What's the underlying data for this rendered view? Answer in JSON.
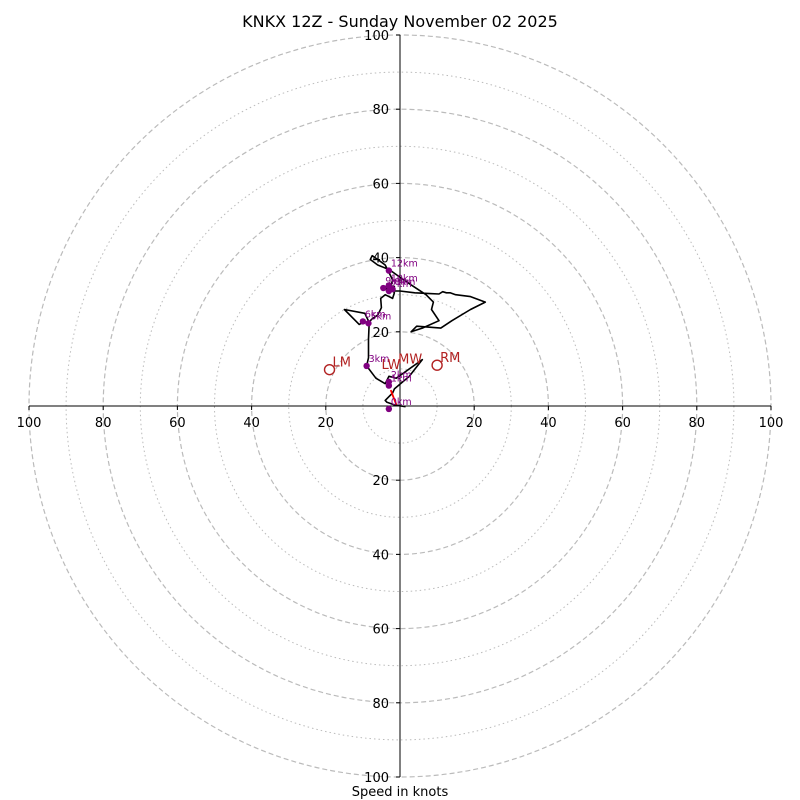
{
  "chart_data": {
    "type": "hodograph",
    "title": "KNKX 12Z - Sunday November 02 2025",
    "xlabel": "Speed in knots",
    "units": "knots",
    "range": [
      -100,
      100
    ],
    "rings_dashed": [
      20,
      40,
      60,
      80,
      100
    ],
    "rings_dotted": [
      10,
      30,
      50,
      70,
      90
    ],
    "tick_labels": {
      "x_left": [
        "100",
        "80",
        "60",
        "40",
        "20"
      ],
      "x_right": [
        "20",
        "40",
        "60",
        "80",
        "100"
      ],
      "y_up": [
        "20",
        "40",
        "60",
        "80",
        "100"
      ],
      "y_down": [
        "20",
        "40",
        "60",
        "80",
        "100"
      ]
    },
    "trace": [
      [
        1.5,
        -0.2
      ],
      [
        -1.5,
        0.3
      ],
      [
        -3.5,
        1.0
      ],
      [
        -4.0,
        1.5
      ],
      [
        -3.0,
        2.5
      ],
      [
        -2.0,
        3.5
      ],
      [
        -1.5,
        4.6
      ],
      [
        2.5,
        8.0
      ],
      [
        6.0,
        12.5
      ],
      [
        -1.0,
        7.5
      ],
      [
        -3.0,
        8.0
      ],
      [
        -4.0,
        6.0
      ],
      [
        -6.5,
        7.5
      ],
      [
        -9.0,
        10.8
      ],
      [
        -8.5,
        13.0
      ],
      [
        -8.5,
        18.0
      ],
      [
        -8.3,
        22.5
      ],
      [
        -9.5,
        25.0
      ],
      [
        -15.0,
        26.0
      ],
      [
        -11.0,
        22.0
      ],
      [
        -10.0,
        22.5
      ],
      [
        -8.5,
        22.5
      ],
      [
        -7.5,
        23.5
      ],
      [
        -6.0,
        24.5
      ],
      [
        -5.0,
        26.5
      ],
      [
        -5.2,
        29.0
      ],
      [
        -4.0,
        30.0
      ],
      [
        -2.0,
        29.0
      ],
      [
        -1.5,
        30.5
      ],
      [
        -2.5,
        32.0
      ],
      [
        -2.0,
        34.0
      ],
      [
        -3.0,
        36.0
      ],
      [
        -4.0,
        38.0
      ],
      [
        -6.0,
        39.5
      ],
      [
        -7.5,
        40.5
      ],
      [
        -8.0,
        39.5
      ],
      [
        -6.0,
        38.0
      ],
      [
        -3.5,
        37.0
      ],
      [
        -2.5,
        36.5
      ],
      [
        1.0,
        34.0
      ],
      [
        4.0,
        32.0
      ],
      [
        7.0,
        30.0
      ],
      [
        9.0,
        28.0
      ],
      [
        8.5,
        26.0
      ],
      [
        10.5,
        23.0
      ],
      [
        6.0,
        21.0
      ],
      [
        3.0,
        20.0
      ],
      [
        4.5,
        21.5
      ],
      [
        11.0,
        21.0
      ],
      [
        14.0,
        23.0
      ],
      [
        19.0,
        26.0
      ],
      [
        23.0,
        28.0
      ],
      [
        19.0,
        29.5
      ],
      [
        15.0,
        30.0
      ],
      [
        13.5,
        30.5
      ],
      [
        12.5,
        30.5
      ],
      [
        11.5,
        30.8
      ],
      [
        10.5,
        30.2
      ],
      [
        8.0,
        30.3
      ],
      [
        4.0,
        30.5
      ],
      [
        0.0,
        31.0
      ],
      [
        -2.0,
        31.0
      ],
      [
        -4.5,
        31.5
      ],
      [
        -3.5,
        32.5
      ],
      [
        -1.5,
        32.2
      ],
      [
        -3.0,
        31.7
      ],
      [
        -5.0,
        31.8
      ]
    ],
    "height_markers": [
      {
        "label": "12km",
        "u": -3.0,
        "v": 36.5
      },
      {
        "label": "10km",
        "u": -3.0,
        "v": 32.5
      },
      {
        "label": "9km",
        "u": -4.5,
        "v": 31.8
      },
      {
        "label": "8km",
        "u": -2.0,
        "v": 31.5
      },
      {
        "label": "7km",
        "u": -3.0,
        "v": 31.0
      },
      {
        "label": "6km",
        "u": -10.0,
        "v": 22.8
      },
      {
        "label": "5km",
        "u": -8.5,
        "v": 22.3
      },
      {
        "label": "3km",
        "u": -9.0,
        "v": 10.8
      },
      {
        "label": "2km",
        "u": -3.0,
        "v": 6.5
      },
      {
        "label": "1km",
        "u": -3.0,
        "v": 5.5
      },
      {
        "label": "0km",
        "u": -3.0,
        "v": -0.8
      }
    ],
    "storm_motion": [
      {
        "label": "LM",
        "u": -19.0,
        "v": 9.8,
        "color": "#b22222"
      },
      {
        "label": "RM",
        "u": 10.0,
        "v": 11.0,
        "color": "#b22222"
      }
    ],
    "motion_labels": [
      {
        "label": "LW",
        "u": -5.0,
        "v": 10.0
      },
      {
        "label": "MW",
        "u": -0.5,
        "v": 11.5
      }
    ],
    "vector": {
      "from": [
        -2.5,
        4.3
      ],
      "to": [
        -1.0,
        0.4
      ],
      "color": "#ff0000"
    },
    "colors": {
      "trace": "#000000",
      "marker": "#800080",
      "ring": "#bbbbbb",
      "storm": "#b22222",
      "vector": "#ff0000",
      "axis": "#000000",
      "background": "#ffffff"
    }
  }
}
